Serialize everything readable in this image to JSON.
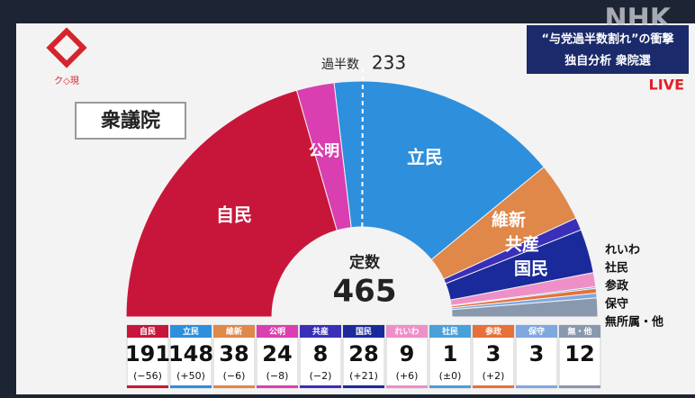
{
  "logo": "ク◇現",
  "broadcaster": "NHK",
  "headline": [
    "“与党過半数割れ”の衝撃",
    "独自分析 衆院選"
  ],
  "live": "LIVE",
  "chart_data": {
    "type": "semicircle",
    "title": "衆議院",
    "total_label": "定数",
    "total": 465,
    "majority_label": "過半数",
    "majority": 233,
    "arc_labels": [
      "自民",
      "公明",
      "立民",
      "維新",
      "共産",
      "国民",
      "れいわ",
      "社民",
      "参政",
      "保守",
      "無所属・他"
    ],
    "categories": [
      "自民",
      "公明",
      "立民",
      "維新",
      "共産",
      "国民",
      "れいわ",
      "社民",
      "参政",
      "保守",
      "無・他"
    ],
    "values": [
      191,
      24,
      148,
      38,
      8,
      28,
      9,
      1,
      3,
      3,
      12
    ],
    "value_changes": [
      "(−56)",
      "(−8)",
      "(+50)",
      "(−6)",
      "(−2)",
      "(+21)",
      "(+6)",
      "(±0)",
      "(+2)",
      null,
      null
    ],
    "colors": [
      "#c8163a",
      "#d93fb0",
      "#2e8fdc",
      "#e0874a",
      "#3a2fb8",
      "#1a2a9a",
      "#ef8fc8",
      "#4aa0d8",
      "#e8703a",
      "#7fa8e0",
      "#8a98ae"
    ]
  }
}
